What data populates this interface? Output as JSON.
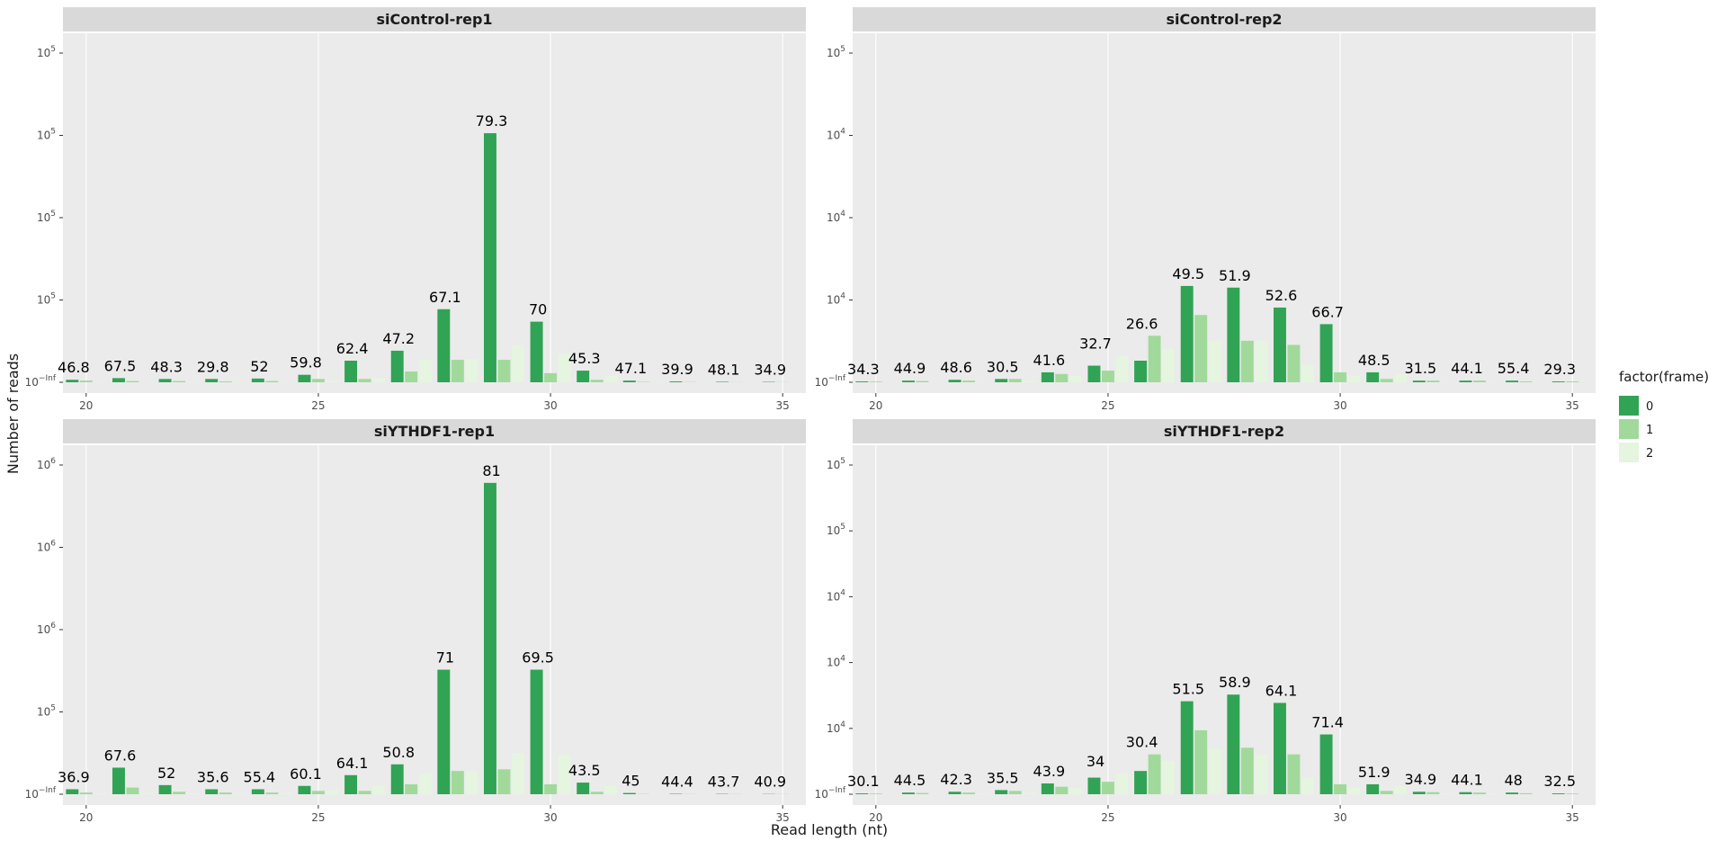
{
  "axis_titles": {
    "x": "Read length (nt)",
    "y": "Number of reads"
  },
  "legend": {
    "title": "factor(frame)",
    "items": [
      {
        "label": "0",
        "color": "#31a354"
      },
      {
        "label": "1",
        "color": "#a1d99b"
      },
      {
        "label": "2",
        "color": "#e5f5e0"
      }
    ]
  },
  "chart_data": [
    {
      "type": "bar",
      "title": "siControl-rep1",
      "x_ticks": [
        "20",
        "25",
        "30",
        "35"
      ],
      "y_tick_labels": [
        {
          "base": "10",
          "exp": "5"
        },
        {
          "base": "10",
          "exp": "5"
        },
        {
          "base": "10",
          "exp": "5"
        },
        {
          "base": "10",
          "exp": "5"
        },
        {
          "base": "10",
          "exp": "−Inf"
        }
      ],
      "categories": [
        20,
        21,
        22,
        23,
        24,
        25,
        26,
        27,
        28,
        29,
        30,
        31,
        32,
        33,
        34,
        35
      ],
      "series": [
        {
          "name": "0",
          "values": [
            0.03,
            0.05,
            0.04,
            0.04,
            0.045,
            0.09,
            0.26,
            0.38,
            0.88,
            3.0,
            0.73,
            0.14,
            0.02,
            0.01,
            0.006,
            0.005
          ]
        },
        {
          "name": "1",
          "values": [
            0.02,
            0.015,
            0.015,
            0.01,
            0.015,
            0.04,
            0.04,
            0.13,
            0.27,
            0.27,
            0.11,
            0.03,
            0.005,
            0.003,
            0.002,
            0.002
          ]
        },
        {
          "name": "2",
          "values": [
            0.01,
            0.005,
            0.01,
            0.01,
            0.01,
            0.02,
            0.05,
            0.27,
            0.28,
            0.45,
            0.34,
            0.08,
            0.01,
            0.005,
            0.003,
            0.002
          ]
        }
      ],
      "bar_labels": [
        "46.8",
        "67.5",
        "48.3",
        "29.8",
        "52",
        "59.8",
        "62.4",
        "47.2",
        "67.1",
        "79.3",
        "70",
        "45.3",
        "47.1",
        "39.9",
        "48.1",
        "34.9"
      ]
    },
    {
      "type": "bar",
      "title": "siControl-rep2",
      "x_ticks": [
        "20",
        "25",
        "30",
        "35"
      ],
      "y_tick_labels": [
        {
          "base": "10",
          "exp": "5"
        },
        {
          "base": "10",
          "exp": "4"
        },
        {
          "base": "10",
          "exp": "4"
        },
        {
          "base": "10",
          "exp": "4"
        },
        {
          "base": "10",
          "exp": "−Inf"
        }
      ],
      "categories": [
        20,
        21,
        22,
        23,
        24,
        25,
        26,
        27,
        28,
        29,
        30,
        31,
        32,
        33,
        34,
        35
      ],
      "series": [
        {
          "name": "0",
          "values": [
            0.01,
            0.02,
            0.03,
            0.04,
            0.12,
            0.2,
            0.26,
            1.16,
            1.14,
            0.9,
            0.7,
            0.12,
            0.02,
            0.02,
            0.02,
            0.01
          ]
        },
        {
          "name": "1",
          "values": [
            0.008,
            0.015,
            0.02,
            0.04,
            0.1,
            0.14,
            0.56,
            0.81,
            0.5,
            0.45,
            0.12,
            0.04,
            0.02,
            0.02,
            0.01,
            0.01
          ]
        },
        {
          "name": "2",
          "values": [
            0.005,
            0.005,
            0.01,
            0.02,
            0.08,
            0.32,
            0.4,
            0.5,
            0.5,
            0.2,
            0.08,
            0.1,
            0.01,
            0.01,
            0.005,
            0.005
          ]
        }
      ],
      "bar_labels": [
        "34.3",
        "44.9",
        "48.6",
        "30.5",
        "41.6",
        "32.7",
        "26.6",
        "49.5",
        "51.9",
        "52.6",
        "66.7",
        "48.5",
        "31.5",
        "44.1",
        "55.4",
        "29.3"
      ]
    },
    {
      "type": "bar",
      "title": "siYTHDF1-rep1",
      "x_ticks": [
        "20",
        "25",
        "30",
        "35"
      ],
      "y_tick_labels": [
        {
          "base": "10",
          "exp": "6"
        },
        {
          "base": "10",
          "exp": "6"
        },
        {
          "base": "10",
          "exp": "6"
        },
        {
          "base": "10",
          "exp": "5"
        },
        {
          "base": "10",
          "exp": "−Inf"
        }
      ],
      "categories": [
        20,
        21,
        22,
        23,
        24,
        25,
        26,
        27,
        28,
        29,
        30,
        31,
        32,
        33,
        34,
        35
      ],
      "series": [
        {
          "name": "0",
          "values": [
            0.06,
            0.32,
            0.11,
            0.06,
            0.06,
            0.1,
            0.23,
            0.36,
            1.5,
            3.75,
            1.5,
            0.14,
            0.015,
            0.005,
            0.004,
            0.003
          ]
        },
        {
          "name": "1",
          "values": [
            0.02,
            0.08,
            0.03,
            0.02,
            0.02,
            0.04,
            0.04,
            0.12,
            0.28,
            0.3,
            0.12,
            0.03,
            0.003,
            0.002,
            0.002,
            0.002
          ]
        },
        {
          "name": "2",
          "values": [
            0.01,
            0.02,
            0.01,
            0.01,
            0.02,
            0.05,
            0.1,
            0.25,
            0.28,
            0.5,
            0.48,
            0.1,
            0.005,
            0.003,
            0.002,
            0.002
          ]
        }
      ],
      "bar_labels": [
        "36.9",
        "67.6",
        "52",
        "35.6",
        "55.4",
        "60.1",
        "64.1",
        "50.8",
        "71",
        "81",
        "69.5",
        "43.5",
        "45",
        "44.4",
        "43.7",
        "40.9"
      ]
    },
    {
      "type": "bar",
      "title": "siYTHDF1-rep2",
      "x_ticks": [
        "20",
        "25",
        "30",
        "35"
      ],
      "y_tick_labels": [
        {
          "base": "10",
          "exp": "5"
        },
        {
          "base": "10",
          "exp": "5"
        },
        {
          "base": "10",
          "exp": "4"
        },
        {
          "base": "10",
          "exp": "4"
        },
        {
          "base": "10",
          "exp": "4"
        },
        {
          "base": "10",
          "exp": "−Inf"
        }
      ],
      "categories": [
        20,
        21,
        22,
        23,
        24,
        25,
        26,
        27,
        28,
        29,
        30,
        31,
        32,
        33,
        34,
        35
      ],
      "series": [
        {
          "name": "0",
          "values": [
            0.01,
            0.02,
            0.03,
            0.05,
            0.13,
            0.2,
            0.28,
            1.12,
            1.2,
            1.1,
            0.72,
            0.12,
            0.03,
            0.025,
            0.02,
            0.01
          ]
        },
        {
          "name": "1",
          "values": [
            0.008,
            0.015,
            0.02,
            0.04,
            0.09,
            0.15,
            0.48,
            0.77,
            0.56,
            0.48,
            0.12,
            0.04,
            0.025,
            0.02,
            0.012,
            0.008
          ]
        },
        {
          "name": "2",
          "values": [
            0.005,
            0.005,
            0.01,
            0.02,
            0.07,
            0.25,
            0.4,
            0.54,
            0.48,
            0.2,
            0.08,
            0.1,
            0.01,
            0.01,
            0.005,
            0.005
          ]
        }
      ],
      "bar_labels": [
        "30.1",
        "44.5",
        "42.3",
        "35.5",
        "43.9",
        "34",
        "30.4",
        "51.5",
        "58.9",
        "64.1",
        "71.4",
        "51.9",
        "34.9",
        "44.1",
        "48",
        "32.5"
      ]
    }
  ]
}
